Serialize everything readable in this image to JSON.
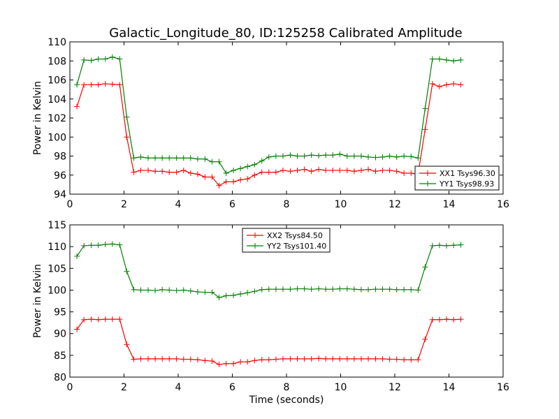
{
  "figure": {
    "title": "Galactic_Longitude_80, ID:125258 Calibrated Amplitude",
    "colors": {
      "xx": "#ff0000",
      "yy": "#008000",
      "axes": "#000000",
      "background": "#ffffff"
    }
  },
  "chart_data": [
    {
      "type": "line",
      "xlabel": "",
      "ylabel": "Power in Kelvin",
      "xlim": [
        0,
        16
      ],
      "ylim": [
        94,
        110
      ],
      "xticks": [
        0,
        2,
        4,
        6,
        8,
        10,
        12,
        14,
        16
      ],
      "yticks": [
        94,
        96,
        98,
        100,
        102,
        104,
        106,
        108,
        110
      ],
      "grid": false,
      "legend_position": "lower-right",
      "x": [
        0.26,
        0.52,
        0.79,
        1.05,
        1.31,
        1.57,
        1.84,
        2.1,
        2.36,
        2.62,
        2.89,
        3.15,
        3.41,
        3.67,
        3.94,
        4.2,
        4.46,
        4.72,
        4.99,
        5.25,
        5.51,
        5.77,
        6.04,
        6.3,
        6.56,
        6.82,
        7.09,
        7.35,
        7.61,
        7.87,
        8.14,
        8.4,
        8.66,
        8.92,
        9.19,
        9.45,
        9.71,
        9.97,
        10.24,
        10.5,
        10.76,
        11.02,
        11.29,
        11.55,
        11.81,
        12.07,
        12.34,
        12.6,
        12.86,
        13.12,
        13.39,
        13.65,
        13.91,
        14.17,
        14.44
      ],
      "series": [
        {
          "name": "XX1 Tsys96.30",
          "color": "#ff0000",
          "values": [
            103.2,
            105.5,
            105.5,
            105.5,
            105.6,
            105.55,
            105.5,
            100.0,
            96.3,
            96.5,
            96.5,
            96.4,
            96.4,
            96.3,
            96.3,
            96.5,
            96.2,
            96.1,
            95.8,
            95.8,
            94.9,
            95.3,
            95.3,
            95.5,
            95.6,
            96.0,
            96.3,
            96.3,
            96.3,
            96.5,
            96.4,
            96.5,
            96.6,
            96.4,
            96.6,
            96.5,
            96.5,
            96.5,
            96.5,
            96.4,
            96.5,
            96.6,
            96.4,
            96.5,
            96.5,
            96.4,
            96.2,
            96.2,
            96.1,
            100.8,
            105.6,
            105.3,
            105.5,
            105.6,
            105.5
          ]
        },
        {
          "name": "YY1 Tsys98.93",
          "color": "#008000",
          "values": [
            105.5,
            108.1,
            108.05,
            108.2,
            108.2,
            108.4,
            108.2,
            102.1,
            97.8,
            97.9,
            97.8,
            97.8,
            97.8,
            97.8,
            97.8,
            97.8,
            97.8,
            97.7,
            97.7,
            97.4,
            97.4,
            96.2,
            96.5,
            96.7,
            96.9,
            97.1,
            97.5,
            97.9,
            98.0,
            98.0,
            98.1,
            98.0,
            98.0,
            98.1,
            98.05,
            98.1,
            98.1,
            98.2,
            98.0,
            98.0,
            98.0,
            97.9,
            97.85,
            97.9,
            98.0,
            97.9,
            98.0,
            97.95,
            97.8,
            103.0,
            108.2,
            108.2,
            108.1,
            108.0,
            108.1
          ]
        }
      ]
    },
    {
      "type": "line",
      "xlabel": "Time (seconds)",
      "ylabel": "Power in Kelvin",
      "xlim": [
        0,
        16
      ],
      "ylim": [
        80,
        115
      ],
      "xticks": [
        0,
        2,
        4,
        6,
        8,
        10,
        12,
        14,
        16
      ],
      "yticks": [
        80,
        85,
        90,
        95,
        100,
        105,
        110,
        115
      ],
      "grid": false,
      "legend_position": "upper-center",
      "x": [
        0.26,
        0.52,
        0.79,
        1.05,
        1.31,
        1.57,
        1.84,
        2.1,
        2.36,
        2.62,
        2.89,
        3.15,
        3.41,
        3.67,
        3.94,
        4.2,
        4.46,
        4.72,
        4.99,
        5.25,
        5.51,
        5.77,
        6.04,
        6.3,
        6.56,
        6.82,
        7.09,
        7.35,
        7.61,
        7.87,
        8.14,
        8.4,
        8.66,
        8.92,
        9.19,
        9.45,
        9.71,
        9.97,
        10.24,
        10.5,
        10.76,
        11.02,
        11.29,
        11.55,
        11.81,
        12.07,
        12.34,
        12.6,
        12.86,
        13.12,
        13.39,
        13.65,
        13.91,
        14.17,
        14.44
      ],
      "series": [
        {
          "name": "XX2 Tsys84.50",
          "color": "#ff0000",
          "values": [
            91.0,
            93.2,
            93.3,
            93.2,
            93.3,
            93.3,
            93.3,
            87.5,
            84.1,
            84.2,
            84.2,
            84.2,
            84.2,
            84.2,
            84.2,
            84.1,
            84.1,
            84.0,
            83.8,
            83.7,
            82.9,
            83.1,
            83.1,
            83.5,
            83.5,
            83.8,
            84.0,
            84.0,
            84.1,
            84.2,
            84.2,
            84.2,
            84.2,
            84.2,
            84.3,
            84.2,
            84.2,
            84.2,
            84.2,
            84.2,
            84.2,
            84.2,
            84.2,
            84.2,
            84.1,
            84.1,
            84.0,
            84.0,
            84.0,
            88.7,
            93.2,
            93.2,
            93.3,
            93.2,
            93.3
          ]
        },
        {
          "name": "YY2 Tsys101.40",
          "color": "#008000",
          "values": [
            107.8,
            110.2,
            110.3,
            110.3,
            110.5,
            110.6,
            110.4,
            104.3,
            100.1,
            100.0,
            100.0,
            99.9,
            100.1,
            100.0,
            99.9,
            100.0,
            99.8,
            99.6,
            99.5,
            99.5,
            98.3,
            98.7,
            98.8,
            99.1,
            99.4,
            99.7,
            100.1,
            100.2,
            100.2,
            100.2,
            100.2,
            100.3,
            100.3,
            100.2,
            100.3,
            100.2,
            100.2,
            100.3,
            100.3,
            100.2,
            100.1,
            100.1,
            100.2,
            100.2,
            100.2,
            100.1,
            100.1,
            100.1,
            100.0,
            105.3,
            110.2,
            110.3,
            110.2,
            110.3,
            110.4
          ]
        }
      ]
    }
  ]
}
